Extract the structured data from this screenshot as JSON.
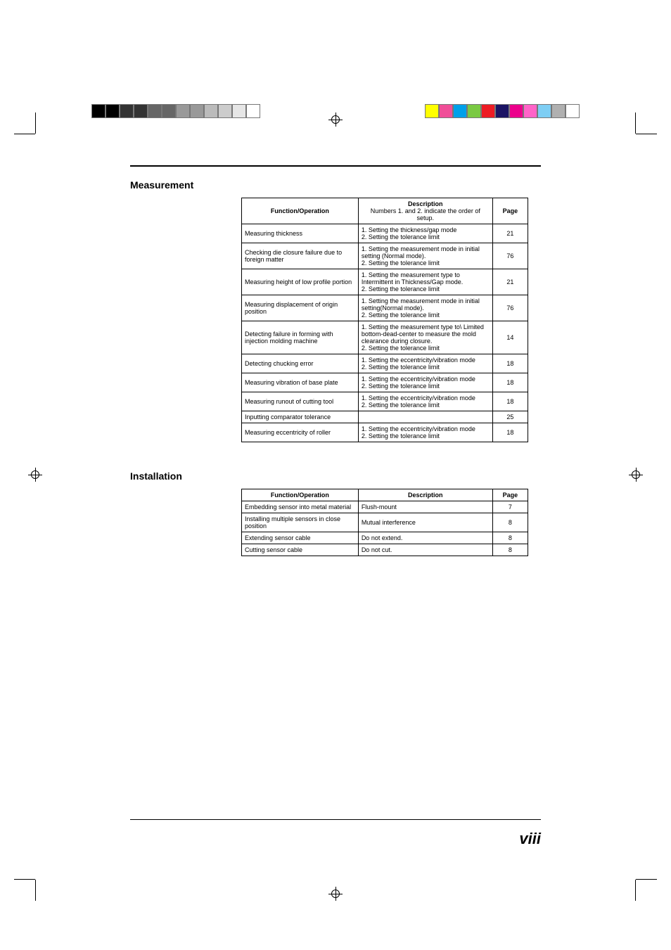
{
  "colorbar_left": [
    "#000000",
    "#000000",
    "#333333",
    "#333333",
    "#666666",
    "#666666",
    "#999999",
    "#999999",
    "#bbbbbb",
    "#cccccc",
    "#e6e6e6",
    "#ffffff"
  ],
  "colorbar_right": [
    "#ffff00",
    "#f04e98",
    "#00a0e9",
    "#7ac943",
    "#ed1c24",
    "#1b1464",
    "#ec008c",
    "#ff64c8",
    "#7ecef4",
    "#b0b0b0",
    "#ffffff"
  ],
  "measurement": {
    "heading": "Measurement",
    "headers": {
      "fn": "Function/Operation",
      "desc": "Description",
      "desc_sub": "Numbers 1. and 2. indicate the order of setup.",
      "page": "Page"
    },
    "rows": [
      {
        "fn": "Measuring thickness",
        "desc": "1. Setting the thickness/gap mode\n2. Setting the tolerance limit",
        "page": "21"
      },
      {
        "fn": "Checking die closure failure due to foreign matter",
        "desc": "1. Setting the measurement mode in initial setting (Normal mode).\n2. Setting the tolerance limit",
        "page": "76"
      },
      {
        "fn": "Measuring height of low profile portion",
        "desc": "1. Setting the measurement type to Intermittent in Thickness/Gap mode.\n2. Setting the tolerance limit",
        "page": "21"
      },
      {
        "fn": "Measuring displacement of origin position",
        "desc": "1. Setting the measurement mode in initial setting(Normal mode).\n2. Setting the tolerance limit",
        "page": "76"
      },
      {
        "fn": "Detecting failure in forming with injection molding machine",
        "desc": "1. Setting the measurement type to\\ Limited bottom-dead-center to measure the mold clearance during closure.\n2. Setting the tolerance limit",
        "page": "14"
      },
      {
        "fn": "Detecting chucking error",
        "desc": "1. Setting the eccentricity/vibration mode\n2. Setting the tolerance limit",
        "page": "18"
      },
      {
        "fn": "Measuring vibration of base plate",
        "desc": "1. Setting the eccentricity/vibration mode\n2. Setting the tolerance limit",
        "page": "18"
      },
      {
        "fn": "Measuring runout of cutting tool",
        "desc": "1. Setting the eccentricity/vibration mode\n2. Setting the tolerance limit",
        "page": "18"
      },
      {
        "fn": "Inputting comparator tolerance",
        "desc": "",
        "page": "25"
      },
      {
        "fn": "Measuring eccentricity of roller",
        "desc": "1. Setting the eccentricity/vibration mode\n2. Setting the tolerance limit",
        "page": "18"
      }
    ]
  },
  "installation": {
    "heading": "Installation",
    "headers": {
      "fn": "Function/Operation",
      "desc": "Description",
      "page": "Page"
    },
    "rows": [
      {
        "fn": "Embedding sensor into metal material",
        "desc": "Flush-mount",
        "page": "7"
      },
      {
        "fn": "Installing multiple sensors in close position",
        "desc": "Mutual interference",
        "page": "8"
      },
      {
        "fn": "Extending sensor cable",
        "desc": "Do not extend.",
        "page": "8"
      },
      {
        "fn": "Cutting sensor cable",
        "desc": "Do not cut.",
        "page": "8"
      }
    ]
  },
  "page_number": "viii"
}
